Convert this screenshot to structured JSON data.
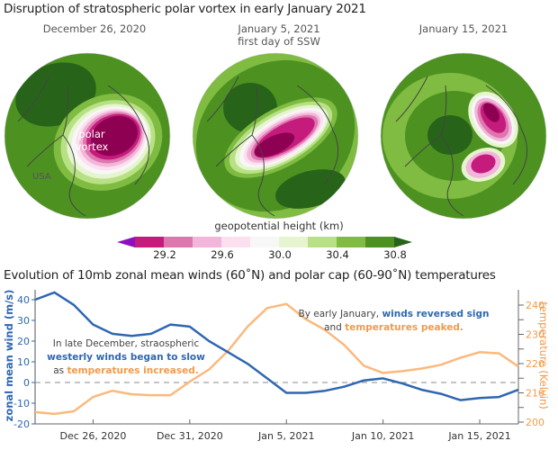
{
  "figure": {
    "title": "Disruption of stratospheric polar vortex in early January 2021",
    "maps": [
      {
        "label": "December 26, 2020",
        "sublabel": "",
        "annotations": [
          "polar",
          "vortex"
        ],
        "region_label": "USA"
      },
      {
        "label": "January 5, 2021",
        "sublabel": "first day of SSW",
        "annotations": [],
        "region_label": ""
      },
      {
        "label": "January 15, 2021",
        "sublabel": "",
        "annotations": [],
        "region_label": ""
      }
    ],
    "colorbar": {
      "title": "geopotential height (km)",
      "colors": [
        "#8e0fbf",
        "#c51b7d",
        "#de77ae",
        "#f1b6da",
        "#fde0ef",
        "#f7f7f7",
        "#e6f5d0",
        "#b8e186",
        "#7fbc41",
        "#4d9221",
        "#276419"
      ],
      "tick_labels": [
        "29.2",
        "29.6",
        "30.0",
        "30.4",
        "30.8"
      ]
    },
    "colors": {
      "wind": "#2e67b1",
      "temperature": "#fbb97d",
      "temperature_text": "#f29a4a",
      "land_outline": "#444444",
      "globe_base": "#4d9221"
    }
  },
  "chart_data": {
    "type": "line",
    "title": "Evolution of 10mb zonal mean winds (60˚N) and polar cap (60-90˚N) temperatures",
    "x": [
      "Dec 23",
      "Dec 24",
      "Dec 25",
      "Dec 26",
      "Dec 27",
      "Dec 28",
      "Dec 29",
      "Dec 30",
      "Dec 31",
      "Jan 1",
      "Jan 2",
      "Jan 3",
      "Jan 4",
      "Jan 5",
      "Jan 6",
      "Jan 7",
      "Jan 8",
      "Jan 9",
      "Jan 10",
      "Jan 11",
      "Jan 12",
      "Jan 13",
      "Jan 14",
      "Jan 15",
      "Jan 16",
      "Jan 17"
    ],
    "x_tick_labels": [
      "Dec 26, 2020",
      "Dec 31, 2020",
      "Jan 5, 2021",
      "Jan 10, 2021",
      "Jan 15, 2021"
    ],
    "x_tick_index": [
      3,
      8,
      13,
      18,
      23
    ],
    "series": [
      {
        "name": "zonal mean wind",
        "axis": "left",
        "values": [
          40,
          43.5,
          37.5,
          28,
          23.5,
          22.5,
          23.5,
          28,
          27,
          20,
          14.5,
          9,
          2,
          -5,
          -5,
          -4,
          -2,
          1,
          2,
          -0.5,
          -3.5,
          -5.5,
          -8.5,
          -7.5,
          -7,
          -3.5
        ]
      },
      {
        "name": "temperature",
        "axis": "right",
        "values": [
          203.4,
          202.8,
          203.7,
          208.6,
          210.7,
          209.5,
          209.2,
          209.2,
          213.8,
          218,
          224.5,
          232.7,
          239,
          240.4,
          235.2,
          231.5,
          226.3,
          219.3,
          216.8,
          217.4,
          218.3,
          219.6,
          222,
          223.9,
          223.5,
          219
        ]
      }
    ],
    "left_axis": {
      "label": "zonal mean wind (m/s)",
      "ylim": [
        -20,
        45
      ],
      "ticks": [
        -20,
        -10,
        0,
        10,
        20,
        30,
        40
      ]
    },
    "right_axis": {
      "label": "temperature (Kelvin)",
      "ylim": [
        200,
        243
      ],
      "ticks": [
        200,
        210,
        220,
        230,
        240
      ]
    },
    "zero_line": {
      "value": 0,
      "style": "dashed"
    },
    "annotations": [
      {
        "parts": [
          {
            "text": "In late December, straospheric",
            "style": "plain"
          },
          {
            "text": "westerly winds began to slow",
            "style": "blue"
          },
          {
            "text": "as ",
            "style": "plain",
            "inline": true
          },
          {
            "text": "temperatures increased.",
            "style": "orange",
            "inline": true
          }
        ]
      },
      {
        "parts": [
          {
            "text": "By early January, ",
            "style": "plain"
          },
          {
            "text": "winds reversed sign",
            "style": "blue",
            "inline": true
          },
          {
            "text": "and ",
            "style": "plain"
          },
          {
            "text": "temperatures peaked.",
            "style": "orange",
            "inline": true
          }
        ]
      }
    ],
    "grid": false,
    "legend": "none"
  }
}
